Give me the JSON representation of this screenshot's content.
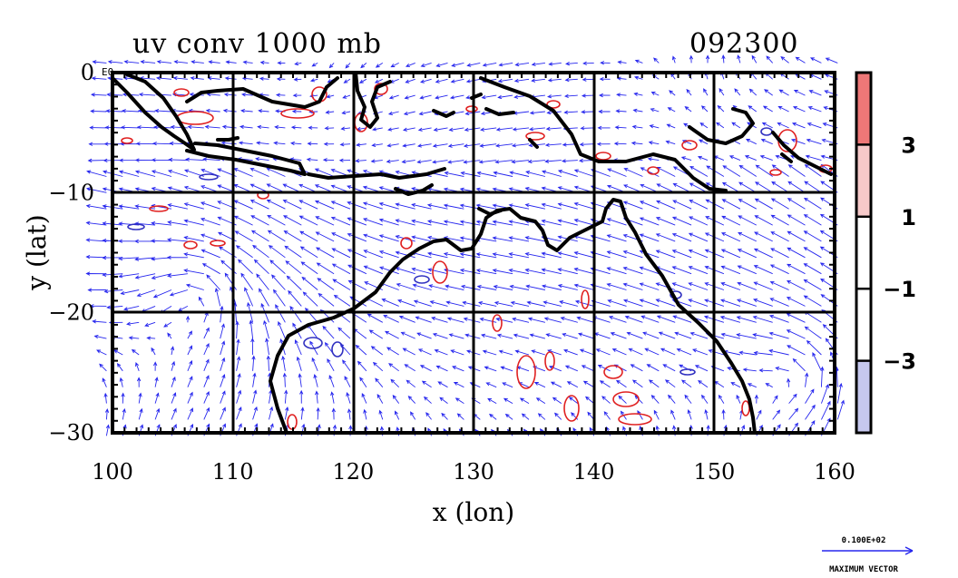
{
  "title_left": "uv conv 1000 mb",
  "title_right": "092300",
  "chart_data": {
    "type": "vector-field-map",
    "xlabel": "x (lon)",
    "ylabel": "y (lat)",
    "xlim": [
      100,
      160
    ],
    "ylim": [
      -30,
      0
    ],
    "x_ticks": [
      "100",
      "110",
      "120",
      "130",
      "140",
      "150",
      "160"
    ],
    "y_ticks": [
      "0",
      "−10",
      "−20",
      "−30"
    ],
    "y_tick_values": [
      0,
      -10,
      -20,
      -30
    ],
    "x_tick_values": [
      100,
      110,
      120,
      130,
      140,
      150,
      160
    ],
    "top_left_corner_label": "E0",
    "grid": true,
    "colorbar": {
      "labels": [
        "3",
        "1",
        "−1",
        "−3"
      ],
      "label_values": [
        3,
        1,
        -1,
        -3
      ],
      "levels": [
        5,
        3,
        1,
        -1,
        -3,
        -5
      ],
      "colors": [
        "#ee7777",
        "#f6c9c9",
        "#ffffff",
        "#ffffff",
        "#c6c8ee",
        "#8c8ee6"
      ]
    },
    "reference_vector": {
      "value_label": "0.100E+02",
      "caption": "MAXIMUM VECTOR"
    },
    "colors": {
      "vectors": "#2626ee",
      "positive_contour": "#e02020",
      "negative_contour": "#3030c0",
      "coastline": "#000000"
    }
  }
}
